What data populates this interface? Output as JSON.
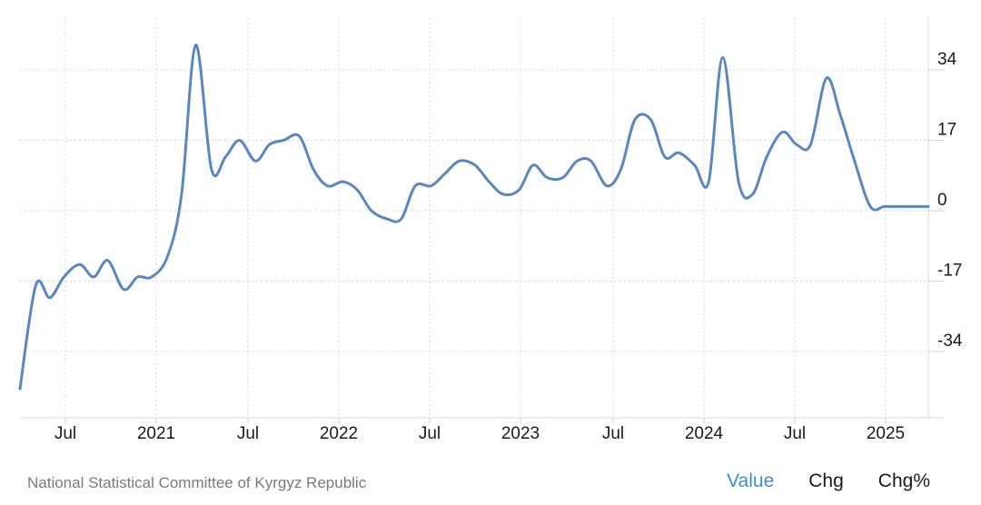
{
  "chart_data": {
    "type": "line",
    "title": "",
    "xlabel": "",
    "ylabel": "",
    "x_ticks": [
      "Jul",
      "2021",
      "Jul",
      "2022",
      "Jul",
      "2023",
      "Jul",
      "2024",
      "Jul",
      "2025"
    ],
    "y_ticks": [
      34,
      17,
      0,
      -17,
      -34
    ],
    "ylim": [
      -50,
      46
    ],
    "grid": true,
    "series": [
      {
        "name": "Value",
        "color": "#5b87c0",
        "x": [
          2020.08,
          2020.17,
          2020.25,
          2020.33,
          2020.42,
          2020.5,
          2020.58,
          2020.67,
          2020.75,
          2020.83,
          2020.92,
          2021.0,
          2021.08,
          2021.17,
          2021.25,
          2021.33,
          2021.42,
          2021.5,
          2021.58,
          2021.67,
          2021.75,
          2021.83,
          2021.92,
          2022.0,
          2022.08,
          2022.17,
          2022.25,
          2022.33,
          2022.42,
          2022.5,
          2022.58,
          2022.67,
          2022.75,
          2022.83,
          2022.92,
          2023.0,
          2023.08,
          2023.17,
          2023.25,
          2023.33,
          2023.42,
          2023.5,
          2023.58,
          2023.67,
          2023.75,
          2023.83,
          2023.92,
          2024.0,
          2024.08,
          2024.17,
          2024.25,
          2024.33,
          2024.42,
          2024.5,
          2024.58,
          2024.67,
          2024.75,
          2024.83,
          2024.92,
          2025.0,
          2025.08,
          2025.17,
          2025.25
        ],
        "values": [
          -43,
          -18,
          -21,
          -16,
          -13,
          -16,
          -12,
          -19,
          -16,
          -16,
          -11,
          4,
          40,
          10,
          13,
          17,
          12,
          16,
          17,
          18,
          10,
          6,
          7,
          5,
          0,
          -2,
          -2,
          6,
          6,
          9,
          12,
          11,
          7,
          4,
          5,
          11,
          8,
          8,
          12,
          12,
          6,
          10,
          22,
          22,
          13,
          14,
          11,
          7,
          37,
          7,
          4,
          13,
          19,
          16,
          16,
          32,
          23,
          12,
          1,
          1,
          1,
          1,
          1
        ]
      }
    ]
  },
  "footer": {
    "source": "National Statistical Committee of Kyrgyz Republic",
    "tabs": [
      "Value",
      "Chg",
      "Chg%"
    ]
  }
}
